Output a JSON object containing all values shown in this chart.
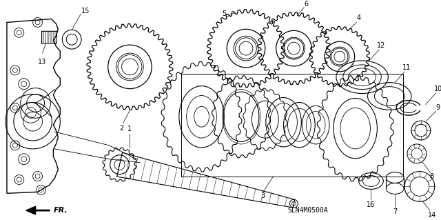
{
  "background_color": "#ffffff",
  "diagram_id": "SLN4M0500A",
  "line_color": "#000000",
  "text_color": "#000000",
  "figsize": [
    6.4,
    3.19
  ],
  "dpi": 100
}
